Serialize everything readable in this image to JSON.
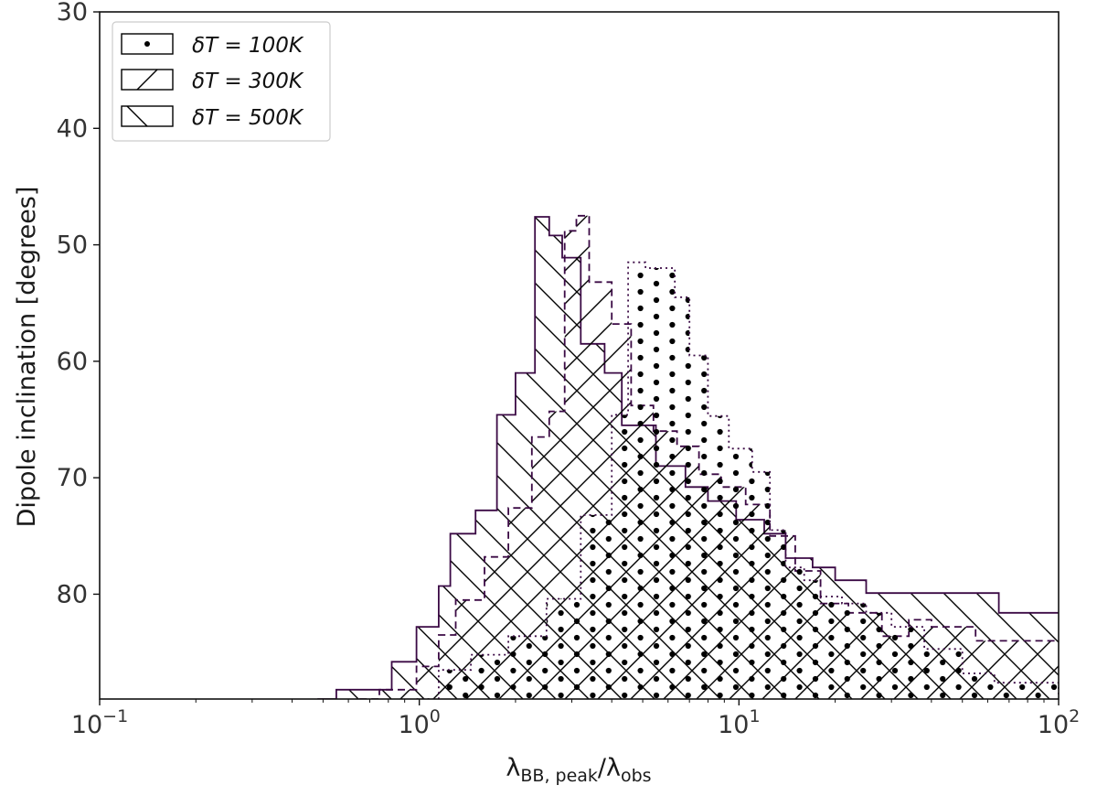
{
  "chart_data": {
    "type": "area",
    "title": "",
    "xlabel": "λBB, peak/λobs",
    "ylabel": "Dipole inclination [degrees]",
    "xscale": "log",
    "xlim": [
      0.1,
      100
    ],
    "ylim": [
      89,
      30
    ],
    "y_inverted": true,
    "grid": false,
    "legend_position": "top-left",
    "line_color": "#3b0a45",
    "x_ticks": [
      {
        "value": 0.1,
        "base": "10",
        "exp": "−1"
      },
      {
        "value": 1,
        "base": "10",
        "exp": "0"
      },
      {
        "value": 10,
        "base": "10",
        "exp": "1"
      },
      {
        "value": 100,
        "base": "10",
        "exp": "2"
      }
    ],
    "y_ticks": [
      30,
      40,
      50,
      60,
      70,
      80
    ],
    "series": [
      {
        "name": "δT = 100K",
        "hatch": "dots",
        "line_style": "dotted",
        "x": [
          0.98,
          1.15,
          1.45,
          1.9,
          2.5,
          3.2,
          4.0,
          4.5,
          5.1,
          6.3,
          7.0,
          8.0,
          9.3,
          11,
          12.5,
          14,
          16,
          18,
          21,
          25,
          30,
          38,
          50,
          63,
          80,
          100
        ],
        "y": [
          89,
          86.5,
          85.2,
          83.6,
          80.4,
          73.2,
          64.6,
          51.5,
          52,
          54.5,
          59.5,
          64.7,
          67.5,
          69.5,
          74.5,
          77.7,
          78.8,
          80.2,
          80.8,
          81.6,
          82.8,
          84.7,
          86.8,
          87.6,
          87.6,
          89
        ]
      },
      {
        "name": "δT = 300K",
        "hatch": "diagonal-up",
        "line_style": "dashed",
        "x": [
          0.65,
          0.75,
          0.98,
          1.15,
          1.3,
          1.6,
          1.9,
          2.25,
          2.55,
          2.85,
          3.1,
          3.4,
          4.0,
          4.6,
          5.4,
          6.4,
          7.5,
          8.8,
          10.5,
          12.5,
          15,
          18,
          22,
          28,
          34,
          40,
          55,
          75,
          100
        ],
        "y": [
          89,
          88.2,
          86.2,
          83.5,
          80.5,
          76.8,
          72.6,
          66.5,
          64.3,
          48.8,
          47.5,
          53.2,
          56.8,
          63.8,
          66.0,
          67.3,
          69.7,
          70.8,
          72.3,
          75.0,
          78.0,
          80.8,
          81.6,
          83.6,
          82.2,
          82.8,
          84.0,
          84.0,
          84.0
        ]
      },
      {
        "name": "δT = 500K",
        "hatch": "diagonal-down",
        "line_style": "solid",
        "x": [
          0.48,
          0.55,
          0.62,
          0.82,
          0.98,
          1.15,
          1.25,
          1.5,
          1.75,
          2.0,
          2.3,
          2.55,
          2.8,
          3.2,
          3.8,
          4.3,
          5.5,
          6.8,
          8.0,
          9.8,
          12,
          14,
          17,
          20,
          25,
          45,
          65,
          100
        ],
        "y": [
          89,
          88.2,
          88.2,
          85.8,
          82.8,
          79.3,
          74.8,
          72.8,
          64.6,
          61.0,
          47.6,
          49.2,
          51.1,
          58.5,
          61.0,
          65.5,
          69.0,
          70.8,
          72.0,
          73.6,
          74.8,
          76.9,
          77.7,
          78.8,
          79.9,
          79.9,
          81.6,
          81.6
        ]
      }
    ]
  }
}
